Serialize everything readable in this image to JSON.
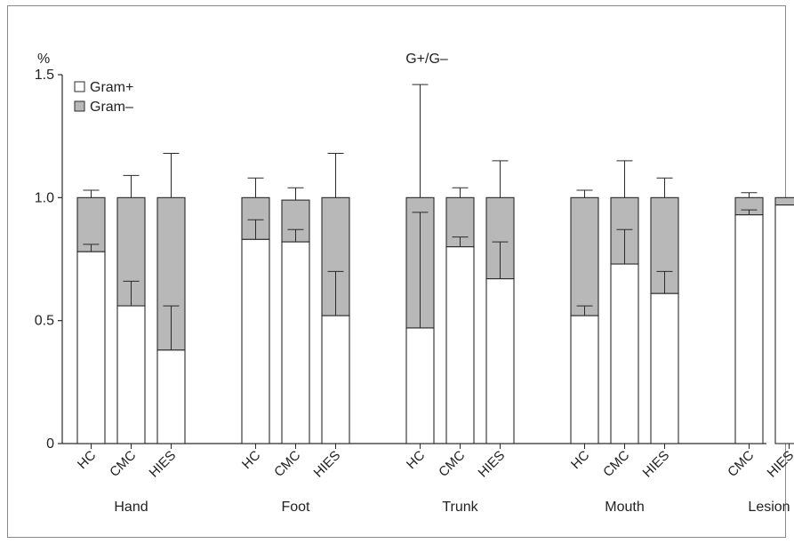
{
  "chart_data": {
    "type": "bar",
    "stacked": true,
    "title": "G+/G–",
    "ylabel": "%",
    "ylim": [
      0,
      1.5
    ],
    "yticks": [
      {
        "value": 0,
        "label": "0"
      },
      {
        "value": 0.5,
        "label": "0.5"
      },
      {
        "value": 1.0,
        "label": "1.0"
      },
      {
        "value": 1.5,
        "label": "1.5"
      }
    ],
    "legend": {
      "placement": "top-left",
      "entries": [
        {
          "name": "Gram+",
          "color": "#ffffff"
        },
        {
          "name": "Gram–",
          "color": "#b8b8b8"
        }
      ]
    },
    "groups": [
      {
        "name": "Hand",
        "bars": [
          {
            "label": "HC",
            "gram_pos": 0.78,
            "gram_pos_err": 0.81,
            "total": 1.0,
            "total_err": 1.03
          },
          {
            "label": "CMC",
            "gram_pos": 0.56,
            "gram_pos_err": 0.66,
            "total": 1.0,
            "total_err": 1.09
          },
          {
            "label": "HIES",
            "gram_pos": 0.38,
            "gram_pos_err": 0.56,
            "total": 1.0,
            "total_err": 1.18
          }
        ]
      },
      {
        "name": "Foot",
        "bars": [
          {
            "label": "HC",
            "gram_pos": 0.83,
            "gram_pos_err": 0.91,
            "total": 1.0,
            "total_err": 1.08
          },
          {
            "label": "CMC",
            "gram_pos": 0.82,
            "gram_pos_err": 0.87,
            "total": 0.99,
            "total_err": 1.04
          },
          {
            "label": "HIES",
            "gram_pos": 0.52,
            "gram_pos_err": 0.7,
            "total": 1.0,
            "total_err": 1.18
          }
        ]
      },
      {
        "name": "Trunk",
        "bars": [
          {
            "label": "HC",
            "gram_pos": 0.47,
            "gram_pos_err": 0.94,
            "total": 1.0,
            "total_err": 1.46
          },
          {
            "label": "CMC",
            "gram_pos": 0.8,
            "gram_pos_err": 0.84,
            "total": 1.0,
            "total_err": 1.04
          },
          {
            "label": "HIES",
            "gram_pos": 0.67,
            "gram_pos_err": 0.82,
            "total": 1.0,
            "total_err": 1.15
          }
        ]
      },
      {
        "name": "Mouth",
        "bars": [
          {
            "label": "HC",
            "gram_pos": 0.52,
            "gram_pos_err": 0.56,
            "total": 1.0,
            "total_err": 1.03
          },
          {
            "label": "CMC",
            "gram_pos": 0.73,
            "gram_pos_err": 0.87,
            "total": 1.0,
            "total_err": 1.15
          },
          {
            "label": "HIES",
            "gram_pos": 0.61,
            "gram_pos_err": 0.7,
            "total": 1.0,
            "total_err": 1.08
          }
        ]
      },
      {
        "name": "Lesion",
        "bars": [
          {
            "label": "CMC",
            "gram_pos": 0.93,
            "gram_pos_err": 0.95,
            "total": 1.0,
            "total_err": 1.02
          },
          {
            "label": "HIES",
            "gram_pos": 0.97,
            "gram_pos_err": null,
            "total": 1.0,
            "total_err": null
          }
        ]
      }
    ]
  }
}
